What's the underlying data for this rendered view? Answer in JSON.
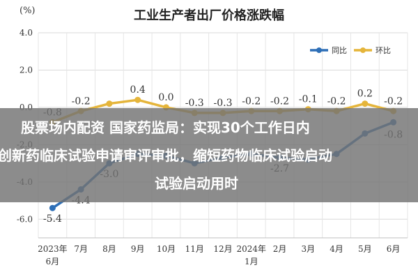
{
  "unit_label": "(%)",
  "overlay_lines": [
    "股票场内配资 国家药监局：实现30个工作日内",
    "创新药临床试验申请审评审批，缩短药物临床试验启动",
    "试验启动用时"
  ],
  "chart_data": {
    "type": "line",
    "title": "工业生产者出厂价格涨跌幅",
    "ylabel": "(%)",
    "ylim": [
      -7.0,
      4.0
    ],
    "yticks": [
      -6.0,
      -4.0,
      -2.0,
      0.0,
      2.0,
      4.0
    ],
    "ytick_labels": [
      "-6.0",
      "-4.0",
      "-2.0",
      "0.0",
      "2.0",
      "4.0"
    ],
    "categories": [
      "2023年6月",
      "7月",
      "8月",
      "9月",
      "10月",
      "11月",
      "12月",
      "2024年1月",
      "2月",
      "3月",
      "4月",
      "5月",
      "6月"
    ],
    "category_lines": [
      [
        "2023年",
        "6月"
      ],
      [
        "7月"
      ],
      [
        "8月"
      ],
      [
        "9月"
      ],
      [
        "10月"
      ],
      [
        "11月"
      ],
      [
        "12月"
      ],
      [
        "2024年",
        "1月"
      ],
      [
        "2月"
      ],
      [
        "3月"
      ],
      [
        "4月"
      ],
      [
        "5月"
      ],
      [
        "6月"
      ]
    ],
    "legend_position": "top-right",
    "grid": true,
    "series": [
      {
        "name": "同比",
        "color": "#2e6fb7",
        "values": [
          -5.4,
          -4.4,
          -3.0,
          -2.5,
          -2.6,
          -3.0,
          -2.7,
          -2.5,
          -2.7,
          -2.8,
          -2.5,
          -1.4,
          -0.8
        ],
        "labels": [
          "-5.4",
          "-4.4",
          "-3.0",
          "",
          "",
          "",
          "",
          "",
          "-2.7",
          "",
          "",
          "",
          "-0.8"
        ]
      },
      {
        "name": "环比",
        "color": "#e5b53b",
        "values": [
          -0.8,
          -0.2,
          0.2,
          0.4,
          0.0,
          -0.3,
          -0.3,
          -0.2,
          -0.2,
          -0.1,
          -0.2,
          0.2,
          -0.2
        ],
        "labels": [
          "-0.8",
          "-0.2",
          "",
          "0.4",
          "0.0",
          "-0.3",
          "-0.3",
          "-0.2",
          "-0.2",
          "-0.1",
          "-0.2",
          "0.2",
          "-0.2"
        ]
      }
    ]
  }
}
